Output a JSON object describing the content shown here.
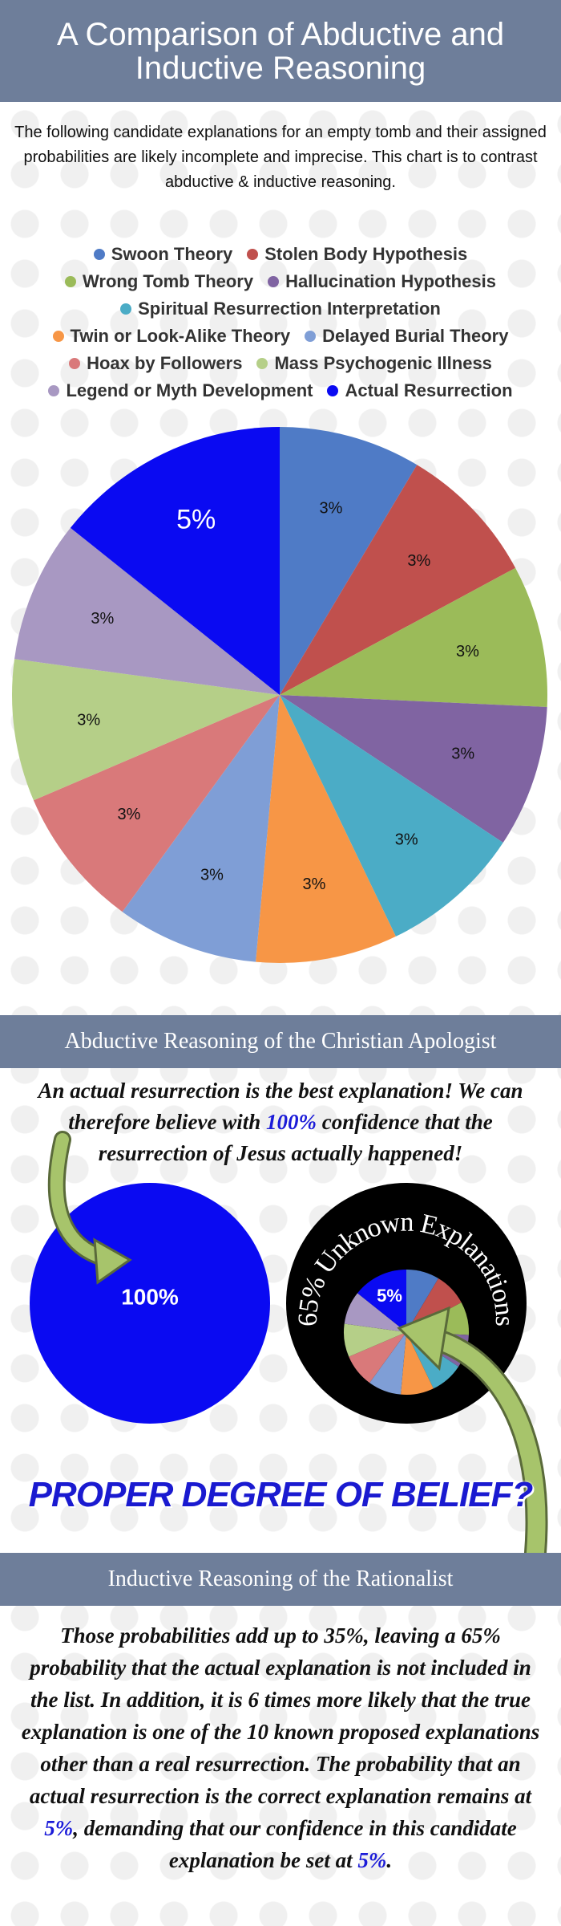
{
  "header": {
    "title": "A Comparison of Abductive and Inductive Reasoning"
  },
  "intro": "The following candidate explanations for an empty tomb and their assigned probabilities are likely incomplete and imprecise. This chart is to contrast abductive & inductive reasoning.",
  "chart_data": {
    "type": "pie",
    "categories": [
      "Swoon Theory",
      "Stolen Body Hypothesis",
      "Wrong Tomb Theory",
      "Hallucination Hypothesis",
      "Spiritual Resurrection Interpretation",
      "Twin or Look-Alike Theory",
      "Delayed Burial Theory",
      "Hoax by Followers",
      "Mass Psychogenic Illness",
      "Legend or Myth Development",
      "Actual Resurrection"
    ],
    "values": [
      3,
      3,
      3,
      3,
      3,
      3,
      3,
      3,
      3,
      3,
      5
    ],
    "value_labels": [
      "3%",
      "3%",
      "3%",
      "3%",
      "3%",
      "3%",
      "3%",
      "3%",
      "3%",
      "3%",
      "5%"
    ],
    "colors": [
      "#4f7bc6",
      "#c0504d",
      "#9bbb59",
      "#8064a2",
      "#4bacc6",
      "#f79646",
      "#7f9ed6",
      "#d9797a",
      "#b5cf88",
      "#a898c2",
      "#0a0af2"
    ]
  },
  "abductive": {
    "heading": "Abductive Reasoning of the Christian Apologist",
    "text": [
      "An actual resurrection is the best explanation! We can therefore believe with ",
      "100%",
      " confidence that the resurrection of Jesus actually happened!"
    ],
    "pie_label": "100%",
    "ring_label": "65% Unknown Explanations",
    "question": "PROPER DEGREE OF BELIEF?"
  },
  "inductive": {
    "heading": "Inductive Reasoning of the Rationalist",
    "text": [
      "Those probabilities add up to 35%, leaving a 65% probability that the actual explanation is not included in the list. In addition, it is 6 times more likely that the true explanation is one of the 10 known proposed explanations other than a real resurrection. The probability that an actual resurrection is the correct explanation remains at ",
      "5%",
      ", demanding that our confidence in this candidate explanation be set at ",
      "5%",
      "."
    ]
  }
}
